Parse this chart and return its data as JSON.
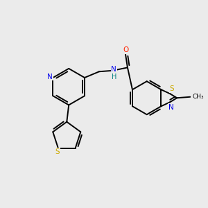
{
  "background_color": "#ebebeb",
  "atom_colors": {
    "N_py": "#0000ee",
    "N_tz": "#0000ee",
    "NH": "#008080",
    "O": "#ff2200",
    "S_th": "#ccaa00",
    "S_tz": "#ccaa00",
    "C": "#000000"
  },
  "figsize": [
    3.0,
    3.0
  ],
  "dpi": 100,
  "xlim": [
    0,
    10
  ],
  "ylim": [
    0,
    10
  ]
}
